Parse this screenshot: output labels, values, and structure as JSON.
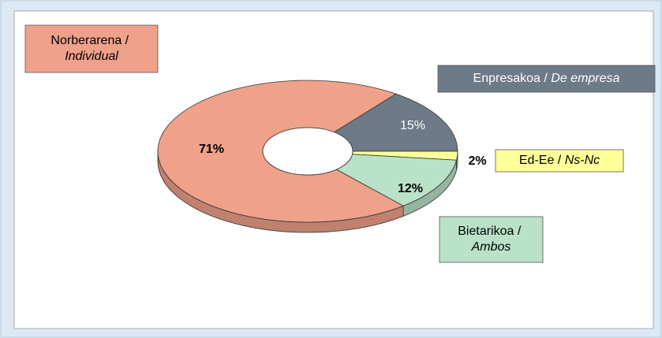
{
  "chart_data": {
    "type": "pie",
    "categories": [
      "Enpresakoa / De empresa",
      "Ed-Ee / Ns-Nc",
      "Bietarikoa / Ambos",
      "Norberarena / Individual"
    ],
    "values": [
      15,
      2,
      12,
      71
    ],
    "value_labels": [
      "15%",
      "2%",
      "12%",
      "71%"
    ],
    "colors": [
      "#6d7a87",
      "#ffff99",
      "#b9e2c9",
      "#f0a18a"
    ],
    "donut": true,
    "3d": true
  }
}
